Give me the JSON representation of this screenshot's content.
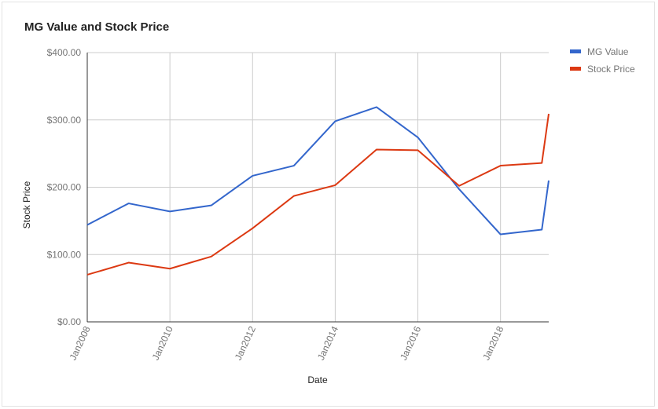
{
  "chart_data": {
    "type": "line",
    "title": "MG Value and Stock Price",
    "xlabel": "Date",
    "ylabel": "Stock Price",
    "x_tick_labels": [
      "Jan2008",
      "Jan2010",
      "Jan2012",
      "Jan2014",
      "Jan2016",
      "Jan2018"
    ],
    "y_tick_labels": [
      "$0.00",
      "$100.00",
      "$200.00",
      "$300.00",
      "$400.00"
    ],
    "ylim": [
      0,
      400
    ],
    "xlim": [
      "2008-01",
      "2019-03"
    ],
    "grid": true,
    "legend_position": "right",
    "x": [
      "2008-01",
      "2009-01",
      "2010-01",
      "2011-01",
      "2012-01",
      "2013-01",
      "2014-01",
      "2015-01",
      "2016-01",
      "2017-01",
      "2018-01",
      "2019-01",
      "2019-03"
    ],
    "series": [
      {
        "name": "MG Value",
        "color": "#3366cc",
        "values": [
          144,
          176,
          164,
          173,
          217,
          232,
          298,
          319,
          274,
          197,
          130,
          137,
          210
        ]
      },
      {
        "name": "Stock Price",
        "color": "#dc3912",
        "values": [
          70,
          88,
          79,
          97,
          139,
          187,
          203,
          256,
          255,
          202,
          232,
          236,
          309
        ]
      }
    ]
  }
}
